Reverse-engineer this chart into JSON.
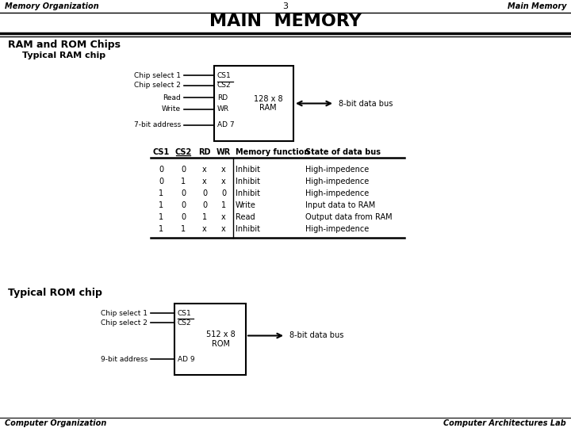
{
  "title": "MAIN  MEMORY",
  "header_left": "Memory Organization",
  "header_center": "3",
  "header_right": "Main Memory",
  "footer_left": "Computer Organization",
  "footer_right": "Computer Architectures Lab",
  "section1": "RAM and ROM Chips",
  "subsection1": "Typical RAM chip",
  "subsection2": "Typical ROM chip",
  "ram_chip_label": "128 x 8\nRAM",
  "rom_chip_label": "512 x 8\nROM",
  "ram_inputs": [
    "CS1",
    "CS2",
    "RD",
    "WR",
    "AD 7"
  ],
  "ram_input_labels": [
    "Chip select 1",
    "Chip select 2",
    "Read",
    "Write",
    "7-bit address"
  ],
  "rom_inputs": [
    "CS1",
    "CS2",
    "AD 9"
  ],
  "rom_input_labels": [
    "Chip select 1",
    "Chip select 2",
    "9-bit address"
  ],
  "data_bus_label": "8-bit data bus",
  "table_headers": [
    "CS1",
    "CS2",
    "RD",
    "WR",
    "Memory function",
    "State of data bus"
  ],
  "table_rows": [
    [
      "0",
      "0",
      "x",
      "x",
      "Inhibit",
      "High-impedence"
    ],
    [
      "0",
      "1",
      "x",
      "x",
      "Inhibit",
      "High-impedence"
    ],
    [
      "1",
      "0",
      "0",
      "0",
      "Inhibit",
      "High-impedence"
    ],
    [
      "1",
      "0",
      "0",
      "1",
      "Write",
      "Input data to RAM"
    ],
    [
      "1",
      "0",
      "1",
      "x",
      "Read",
      "Output data from RAM"
    ],
    [
      "1",
      "1",
      "x",
      "x",
      "Inhibit",
      "High-impedence"
    ]
  ],
  "bg_color": "#ffffff",
  "text_color": "#000000",
  "line_color": "#000000",
  "header_fontsize": 7,
  "title_fontsize": 16,
  "section_fontsize": 9,
  "subsection_fontsize": 8,
  "chip_label_fontsize": 7,
  "pin_fontsize": 6.5,
  "table_fontsize": 7,
  "bus_fontsize": 7,
  "footer_fontsize": 7
}
